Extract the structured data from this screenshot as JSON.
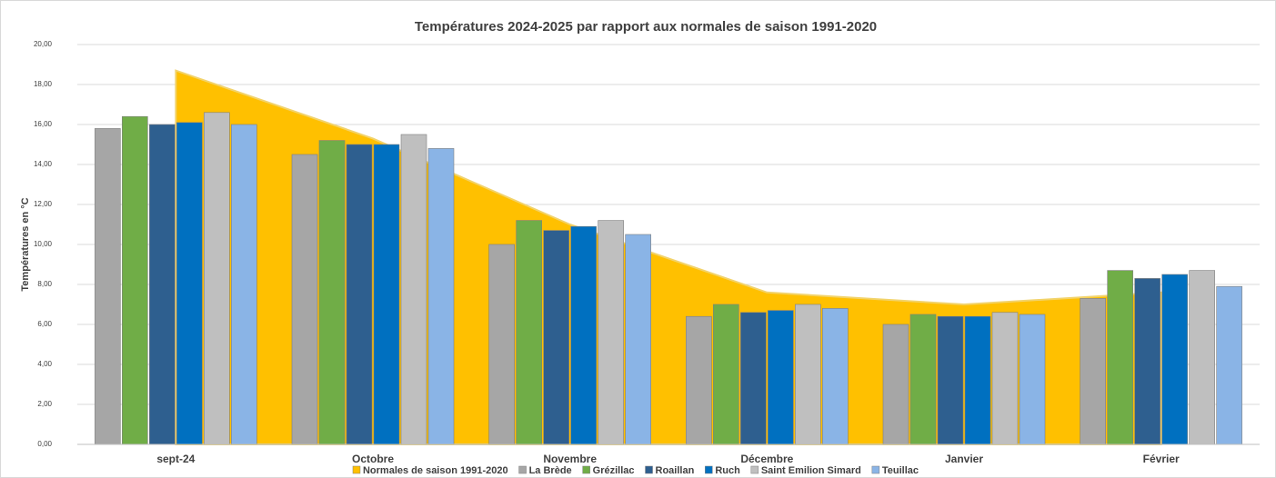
{
  "chart_data": {
    "type": "bar",
    "title": "Températures 2024-2025 par rapport aux normales de saison 1991-2020",
    "ylabel": "Températures en °C",
    "categories": [
      "sept-24",
      "Octobre",
      "Novembre",
      "Décembre",
      "Janvier",
      "Février"
    ],
    "ylim": [
      0,
      20
    ],
    "yticks": [
      {
        "value": 0,
        "label": "0,00"
      },
      {
        "value": 2,
        "label": "2,00"
      },
      {
        "value": 4,
        "label": "4,00"
      },
      {
        "value": 6,
        "label": "6,00"
      },
      {
        "value": 8,
        "label": "8,00"
      },
      {
        "value": 10,
        "label": "10,00"
      },
      {
        "value": 12,
        "label": "12,00"
      },
      {
        "value": 14,
        "label": "14,00"
      },
      {
        "value": 16,
        "label": "16,00"
      },
      {
        "value": 18,
        "label": "18,00"
      },
      {
        "value": 20,
        "label": "20,00"
      }
    ],
    "grid": true,
    "legend": "bottom",
    "series": [
      {
        "name": "Normales de saison 1991-2020",
        "type": "area",
        "color": "#ffc000",
        "values": [
          18.7,
          15.3,
          11.0,
          7.6,
          7.0,
          7.6
        ]
      },
      {
        "name": "La Brède",
        "color": "#a6a6a6",
        "values": [
          15.8,
          14.5,
          10.0,
          6.4,
          6.0,
          7.3
        ]
      },
      {
        "name": "Grézillac",
        "color": "#70ad47",
        "values": [
          16.4,
          15.2,
          11.2,
          7.0,
          6.5,
          8.7
        ]
      },
      {
        "name": "Roaillan",
        "color": "#2e5f8f",
        "values": [
          16.0,
          15.0,
          10.7,
          6.6,
          6.4,
          8.3
        ]
      },
      {
        "name": "Ruch",
        "color": "#0070c0",
        "values": [
          16.1,
          15.0,
          10.9,
          6.7,
          6.4,
          8.5
        ]
      },
      {
        "name": "Saint Emilion Simard",
        "color": "#bfbfbf",
        "values": [
          16.6,
          15.5,
          11.2,
          7.0,
          6.6,
          8.7
        ]
      },
      {
        "name": "Teuillac",
        "color": "#8ab4e6",
        "values": [
          16.0,
          14.8,
          10.5,
          6.8,
          6.5,
          7.9
        ]
      }
    ]
  }
}
